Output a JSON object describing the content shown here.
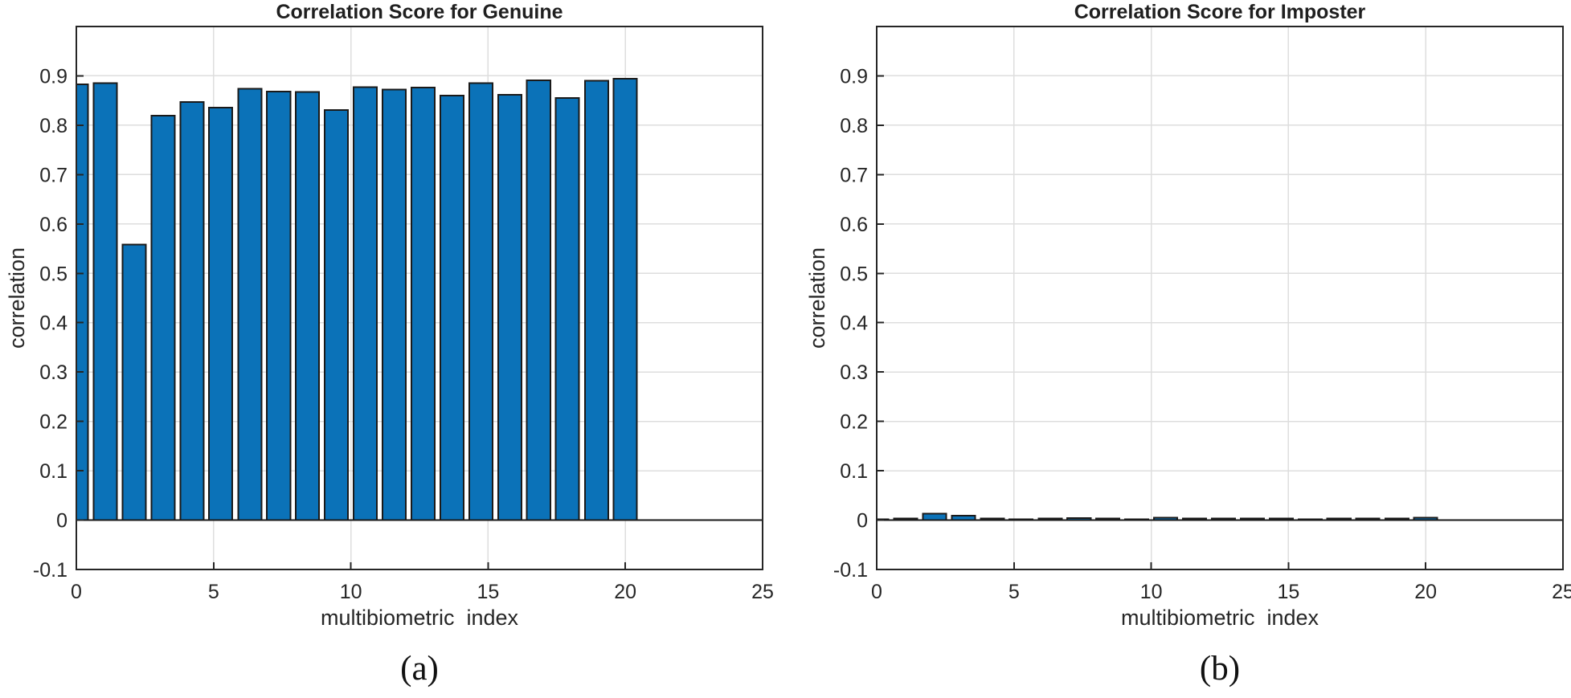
{
  "style": {
    "background": "#ffffff",
    "grid_color": "#dedede",
    "axis_color": "#262626",
    "baseline_color": "#1a1a1a",
    "tick_label_color": "#262626",
    "tick_label_size": 25
  },
  "chart_data": [
    {
      "type": "bar",
      "title": "Correlation Score for Genuine",
      "xlabel": "multibiometric  index",
      "ylabel": "correlation",
      "caption": "(a)",
      "xlim": [
        0,
        25
      ],
      "ylim": [
        -0.1,
        1.0
      ],
      "x_ticks": [
        0,
        5,
        10,
        15,
        20,
        25
      ],
      "y_ticks": [
        -0.1,
        0,
        0.1,
        0.2,
        0.3,
        0.4,
        0.5,
        0.6,
        0.7,
        0.8,
        0.9
      ],
      "grid": true,
      "legend": null,
      "bar_width": 0.85,
      "bar_color": "#0b72b8",
      "bar_edge_color": "#1a1a1a",
      "x": [
        0,
        1.05,
        2.11,
        3.16,
        4.21,
        5.26,
        6.32,
        7.37,
        8.42,
        9.47,
        10.53,
        11.58,
        12.63,
        13.68,
        14.74,
        15.79,
        16.84,
        17.89,
        18.95,
        20
      ],
      "values": [
        0.883,
        0.885,
        0.558,
        0.819,
        0.847,
        0.836,
        0.874,
        0.868,
        0.867,
        0.831,
        0.877,
        0.872,
        0.876,
        0.86,
        0.885,
        0.862,
        0.891,
        0.855,
        0.89,
        0.894
      ]
    },
    {
      "type": "bar",
      "title": "Correlation Score for Imposter",
      "xlabel": "multibiometric  index",
      "ylabel": "correlation",
      "caption": "(b)",
      "xlim": [
        0,
        25
      ],
      "ylim": [
        -0.1,
        1.0
      ],
      "x_ticks": [
        0,
        5,
        10,
        15,
        20,
        25
      ],
      "y_ticks": [
        -0.1,
        0,
        0.1,
        0.2,
        0.3,
        0.4,
        0.5,
        0.6,
        0.7,
        0.8,
        0.9
      ],
      "grid": true,
      "legend": null,
      "bar_width": 0.85,
      "bar_color": "#0b72b8",
      "bar_edge_color": "#1a1a1a",
      "x": [
        0,
        1.05,
        2.11,
        3.16,
        4.21,
        5.26,
        6.32,
        7.37,
        8.42,
        9.47,
        10.53,
        11.58,
        12.63,
        13.68,
        14.74,
        15.79,
        16.84,
        17.89,
        18.95,
        20
      ],
      "values": [
        0.002,
        0.003,
        0.013,
        0.009,
        0.003,
        0.002,
        0.003,
        0.004,
        0.003,
        0.002,
        0.005,
        0.003,
        0.003,
        0.003,
        0.003,
        0.002,
        0.003,
        0.003,
        0.003,
        0.005
      ]
    }
  ]
}
